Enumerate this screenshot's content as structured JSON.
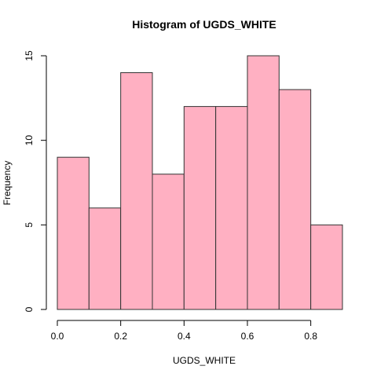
{
  "chart_data": {
    "type": "bar",
    "title": "Histogram of UGDS_WHITE",
    "xlabel": "UGDS_WHITE",
    "ylabel": "Frequency",
    "bins": [
      {
        "start": 0.0,
        "end": 0.1,
        "count": 9
      },
      {
        "start": 0.1,
        "end": 0.2,
        "count": 6
      },
      {
        "start": 0.2,
        "end": 0.3,
        "count": 14
      },
      {
        "start": 0.3,
        "end": 0.4,
        "count": 8
      },
      {
        "start": 0.4,
        "end": 0.5,
        "count": 12
      },
      {
        "start": 0.5,
        "end": 0.6,
        "count": 12
      },
      {
        "start": 0.6,
        "end": 0.7,
        "count": 15
      },
      {
        "start": 0.7,
        "end": 0.8,
        "count": 13
      },
      {
        "start": 0.8,
        "end": 0.9,
        "count": 5
      }
    ],
    "x_ticks": [
      {
        "value": 0.0,
        "label": "0.0"
      },
      {
        "value": 0.2,
        "label": "0.2"
      },
      {
        "value": 0.4,
        "label": "0.4"
      },
      {
        "value": 0.6,
        "label": "0.6"
      },
      {
        "value": 0.8,
        "label": "0.8"
      }
    ],
    "y_ticks": [
      {
        "value": 0,
        "label": "0"
      },
      {
        "value": 5,
        "label": "5"
      },
      {
        "value": 10,
        "label": "10"
      },
      {
        "value": 15,
        "label": "15"
      }
    ],
    "xlim": [
      0.0,
      0.9
    ],
    "ylim": [
      0,
      15
    ],
    "grid": false,
    "colors": {
      "bar_fill": "#FFB0C2",
      "bar_stroke": "#333333"
    }
  }
}
